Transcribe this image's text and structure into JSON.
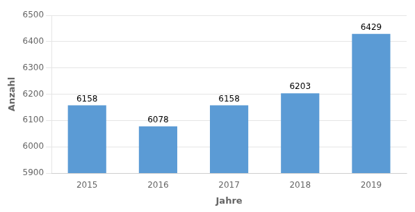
{
  "chart_data": {
    "type": "bar",
    "categories": [
      "2015",
      "2016",
      "2017",
      "2018",
      "2019"
    ],
    "values": [
      6158,
      6078,
      6158,
      6203,
      6429
    ],
    "color": "#5B9BD5",
    "xlabel": "Jahre",
    "ylabel": "Anzahl",
    "ylim": [
      5900,
      6500
    ],
    "yticks": [
      5900,
      6000,
      6100,
      6200,
      6300,
      6400,
      6500
    ],
    "grid": true,
    "data_labels": true
  }
}
